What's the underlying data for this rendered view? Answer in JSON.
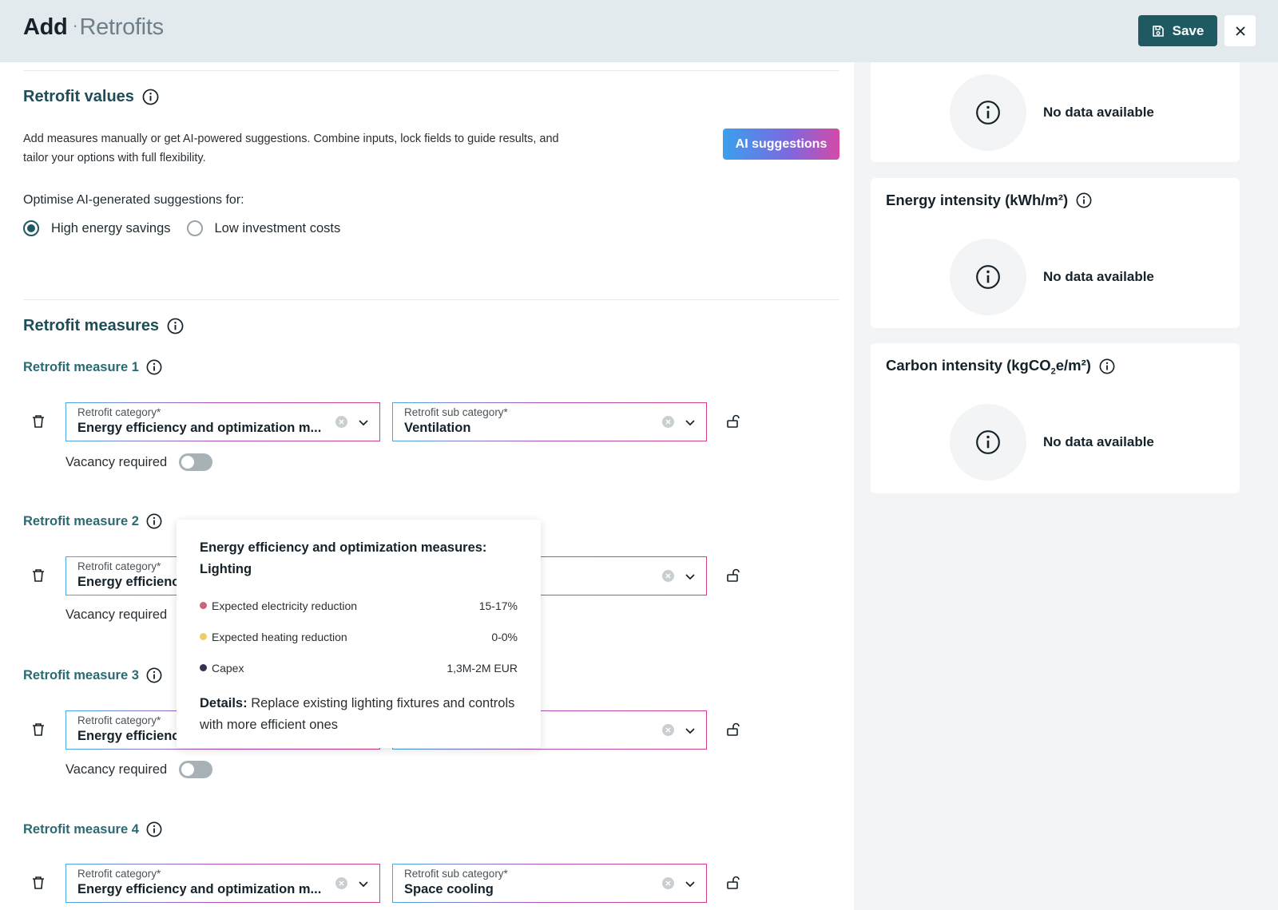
{
  "header": {
    "title": "Add",
    "subtitle": "Retrofits",
    "save_label": "Save"
  },
  "retrofit_values": {
    "title": "Retrofit values",
    "description": "Add measures manually or get AI-powered suggestions. Combine inputs, lock fields to guide results, and tailor your options with full flexibility.",
    "ai_button": "AI suggestions",
    "optimise_label": "Optimise AI-generated suggestions for:",
    "options": [
      {
        "label": "High energy savings",
        "selected": true
      },
      {
        "label": "Low investment costs",
        "selected": false
      }
    ]
  },
  "retrofit_measures": {
    "title": "Retrofit measures",
    "category_label": "Retrofit category*",
    "sub_category_label": "Retrofit sub category*",
    "vacancy_label": "Vacancy required",
    "items": [
      {
        "title": "Retrofit measure 1",
        "category": "Energy efficiency and optimization m...",
        "sub_category": "Ventilation"
      },
      {
        "title": "Retrofit measure 2",
        "category": "Energy efficienc",
        "sub_category": ""
      },
      {
        "title": "Retrofit measure 3",
        "category": "Energy efficienc",
        "sub_category": ""
      },
      {
        "title": "Retrofit measure 4",
        "category": "Energy efficiency and optimization m...",
        "sub_category": "Space cooling"
      }
    ]
  },
  "tooltip": {
    "title": "Energy efficiency and optimization measures: Lighting",
    "rows": [
      {
        "label": "Expected electricity reduction",
        "value": "15-17%",
        "color": "#c9657a"
      },
      {
        "label": "Expected heating reduction",
        "value": "0-0%",
        "color": "#f0cc6a"
      },
      {
        "label": "Capex",
        "value": "1,3M-2M EUR",
        "color": "#33324f"
      }
    ],
    "details_label": "Details:",
    "details_text": "Replace existing lighting fixtures and controls with more efficient ones"
  },
  "right_panel": {
    "no_data": "No data available",
    "cards": [
      {
        "title": ""
      },
      {
        "title": "Energy intensity (kWh/m²)"
      },
      {
        "title_pre": "Carbon intensity (kgCO",
        "title_sub": "2",
        "title_post": "e/m²)"
      }
    ]
  },
  "colors": {
    "primary": "#1f5962",
    "heading": "#1e4d57"
  }
}
